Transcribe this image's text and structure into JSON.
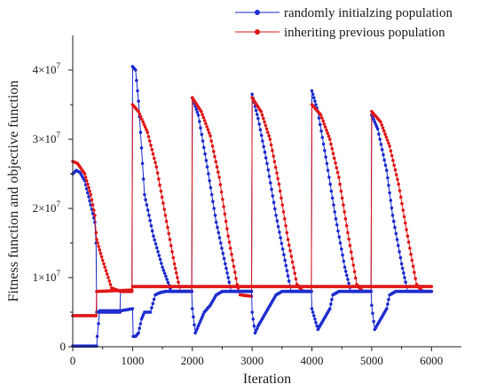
{
  "chart_data": {
    "type": "line",
    "xlabel": "Iteration",
    "ylabel": "Fitness function and objective function",
    "xlim": [
      0,
      6500
    ],
    "ylim": [
      0,
      45000000
    ],
    "x_ticks": [
      0,
      1000,
      2000,
      3000,
      4000,
      5000,
      6000
    ],
    "x_tick_labels": [
      "0",
      "1000",
      "2000",
      "3000",
      "4000",
      "5000",
      "6000"
    ],
    "y_ticks": [
      0,
      10000000,
      20000000,
      30000000,
      40000000
    ],
    "y_tick_labels": [
      {
        "base": "0",
        "exp": ""
      },
      {
        "base": "1×10",
        "exp": "7"
      },
      {
        "base": "2×10",
        "exp": "7"
      },
      {
        "base": "3×10",
        "exp": "7"
      },
      {
        "base": "4×10",
        "exp": "7"
      }
    ],
    "grid": false,
    "legend_position": "top-right",
    "series": [
      {
        "name": "randomly initialzing population",
        "color": "#1f2fd0",
        "marker": "circle",
        "points": [
          [
            0,
            25000000
          ],
          [
            60,
            25500000
          ],
          [
            120,
            25200000
          ],
          [
            200,
            24000000
          ],
          [
            300,
            20500000
          ],
          [
            370,
            18000000
          ],
          [
            390,
            15000000
          ],
          [
            400,
            5000000
          ],
          [
            450,
            5000000
          ],
          [
            790,
            5000000
          ],
          [
            800,
            8000000
          ],
          [
            990,
            8000000
          ],
          [
            1000,
            40500000
          ],
          [
            1050,
            40000000
          ],
          [
            1100,
            35500000
          ],
          [
            1200,
            22000000
          ],
          [
            1350,
            16000000
          ],
          [
            1500,
            11500000
          ],
          [
            1650,
            8000000
          ],
          [
            1990,
            8000000
          ],
          [
            2000,
            36000000
          ],
          [
            2100,
            33500000
          ],
          [
            2250,
            26000000
          ],
          [
            2400,
            18000000
          ],
          [
            2550,
            12000000
          ],
          [
            2650,
            8000000
          ],
          [
            2990,
            8000000
          ],
          [
            3000,
            36500000
          ],
          [
            3100,
            33000000
          ],
          [
            3250,
            26500000
          ],
          [
            3400,
            19000000
          ],
          [
            3550,
            12500000
          ],
          [
            3650,
            8000000
          ],
          [
            3990,
            8000000
          ],
          [
            4000,
            37000000
          ],
          [
            4100,
            34000000
          ],
          [
            4250,
            26500000
          ],
          [
            4400,
            18500000
          ],
          [
            4550,
            11500000
          ],
          [
            4650,
            8000000
          ],
          [
            4990,
            8000000
          ],
          [
            5000,
            33500000
          ],
          [
            5100,
            31500000
          ],
          [
            5250,
            25500000
          ],
          [
            5350,
            19000000
          ],
          [
            5500,
            12000000
          ],
          [
            5600,
            8000000
          ],
          [
            5850,
            8000000
          ]
        ]
      },
      {
        "name": "inheriting previous population",
        "color": "#e01818",
        "marker": "circle",
        "points": [
          [
            0,
            26800000
          ],
          [
            80,
            26500000
          ],
          [
            200,
            25000000
          ],
          [
            300,
            22000000
          ],
          [
            370,
            19000000
          ],
          [
            390,
            16500000
          ],
          [
            400,
            15500000
          ],
          [
            500,
            12500000
          ],
          [
            650,
            8500000
          ],
          [
            800,
            8000000
          ],
          [
            990,
            8000000
          ],
          [
            1000,
            35000000
          ],
          [
            1100,
            34000000
          ],
          [
            1250,
            31000000
          ],
          [
            1400,
            26000000
          ],
          [
            1550,
            19000000
          ],
          [
            1700,
            12000000
          ],
          [
            1800,
            8000000
          ],
          [
            1990,
            8000000
          ],
          [
            2000,
            36000000
          ],
          [
            2150,
            34000000
          ],
          [
            2300,
            30500000
          ],
          [
            2450,
            24500000
          ],
          [
            2600,
            16000000
          ],
          [
            2750,
            9000000
          ],
          [
            2800,
            7500000
          ],
          [
            2990,
            7300000
          ],
          [
            3000,
            36000000
          ],
          [
            3150,
            34000000
          ],
          [
            3300,
            30000000
          ],
          [
            3450,
            23500000
          ],
          [
            3600,
            15500000
          ],
          [
            3750,
            9000000
          ],
          [
            3850,
            8000000
          ],
          [
            3990,
            8000000
          ],
          [
            4000,
            35000000
          ],
          [
            4150,
            33500000
          ],
          [
            4300,
            30000000
          ],
          [
            4450,
            24500000
          ],
          [
            4600,
            16500000
          ],
          [
            4750,
            9000000
          ],
          [
            4850,
            8000000
          ],
          [
            4990,
            8000000
          ],
          [
            5000,
            34000000
          ],
          [
            5150,
            32500000
          ],
          [
            5300,
            29000000
          ],
          [
            5450,
            23500000
          ],
          [
            5600,
            16000000
          ],
          [
            5750,
            9000000
          ],
          [
            5850,
            8000000
          ],
          [
            6000,
            8000000
          ]
        ]
      },
      {
        "name": "",
        "color": "#1f2fd0",
        "marker": "circle",
        "points": [
          [
            0,
            100000
          ],
          [
            400,
            100000
          ],
          [
            410,
            1500000
          ],
          [
            450,
            5200000
          ],
          [
            500,
            5200000
          ],
          [
            800,
            5200000
          ],
          [
            1000,
            5500000
          ],
          [
            1010,
            1500000
          ],
          [
            1050,
            1500000
          ],
          [
            1100,
            2000000
          ],
          [
            1150,
            4000000
          ],
          [
            1200,
            5000000
          ],
          [
            1300,
            5000000
          ],
          [
            1380,
            7500000
          ],
          [
            1450,
            7800000
          ],
          [
            1550,
            8000000
          ],
          [
            1990,
            8000000
          ],
          [
            2000,
            5500000
          ],
          [
            2050,
            2000000
          ],
          [
            2100,
            3000000
          ],
          [
            2200,
            5000000
          ],
          [
            2300,
            6000000
          ],
          [
            2400,
            7500000
          ],
          [
            2500,
            8000000
          ],
          [
            2990,
            8000000
          ],
          [
            3000,
            5000000
          ],
          [
            3050,
            2000000
          ],
          [
            3100,
            3000000
          ],
          [
            3200,
            4500000
          ],
          [
            3300,
            6000000
          ],
          [
            3400,
            7500000
          ],
          [
            3500,
            8000000
          ],
          [
            3990,
            8000000
          ],
          [
            4000,
            5500000
          ],
          [
            4100,
            2500000
          ],
          [
            4200,
            4000000
          ],
          [
            4300,
            5500000
          ],
          [
            4350,
            7500000
          ],
          [
            4450,
            8000000
          ],
          [
            4990,
            8000000
          ],
          [
            5000,
            6000000
          ],
          [
            5050,
            2500000
          ],
          [
            5150,
            4000000
          ],
          [
            5250,
            5500000
          ],
          [
            5300,
            7500000
          ],
          [
            5400,
            8000000
          ],
          [
            6000,
            8000000
          ]
        ]
      },
      {
        "name": "",
        "color": "#e01818",
        "marker": "circle",
        "points": [
          [
            0,
            4500000
          ],
          [
            390,
            4500000
          ],
          [
            400,
            8000000
          ],
          [
            990,
            8200000
          ],
          [
            1000,
            8700000
          ],
          [
            1990,
            8700000
          ],
          [
            2000,
            8700000
          ],
          [
            2990,
            8700000
          ],
          [
            3000,
            8700000
          ],
          [
            3990,
            8700000
          ],
          [
            4000,
            8700000
          ],
          [
            4990,
            8700000
          ],
          [
            5000,
            8700000
          ],
          [
            6000,
            8700000
          ]
        ]
      }
    ]
  }
}
